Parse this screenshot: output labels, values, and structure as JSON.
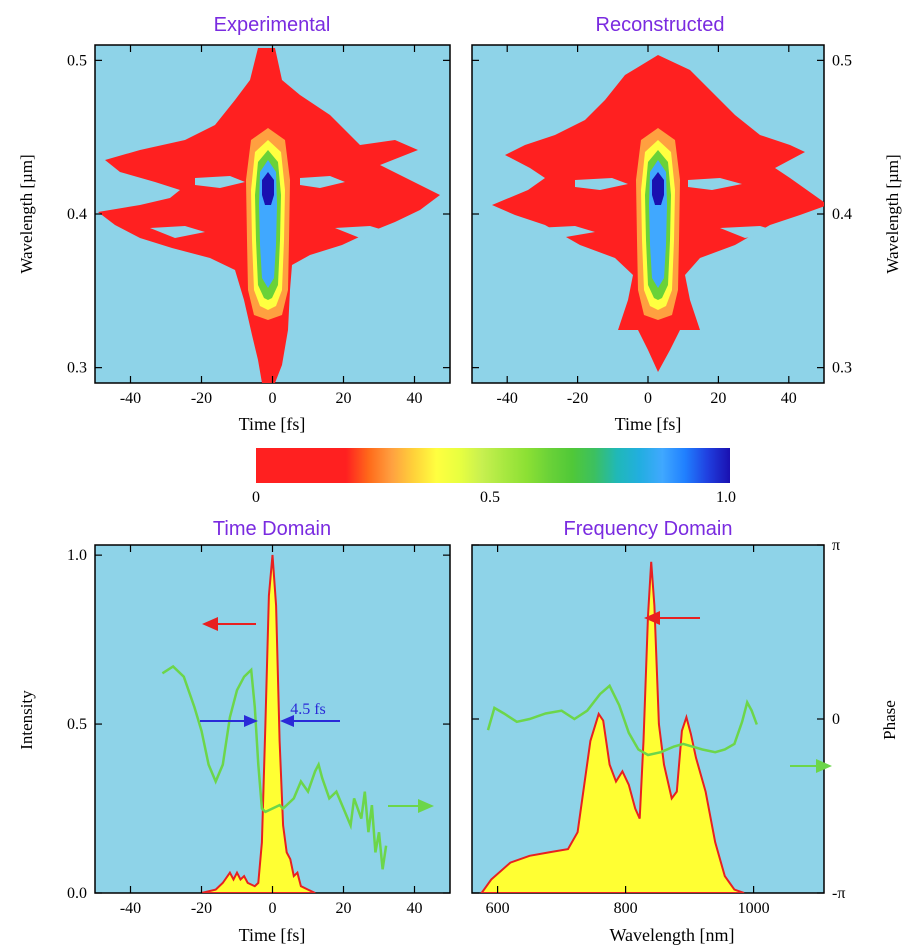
{
  "colors": {
    "background": "#ffffff",
    "plot_bg": "#8ed3e8",
    "title": "#7a2be0",
    "intensity_fill": "#ffff33",
    "intensity_line": "#e82020",
    "phase_line": "#6cd64a",
    "arrow_red": "#e82020",
    "arrow_blue": "#2a2ad8",
    "arrow_green": "#6cd64a"
  },
  "colormap": [
    "#ff2020",
    "#ff2020",
    "#ff2020",
    "#ff2020",
    "#ff2020",
    "#ff6a1a",
    "#ffa040",
    "#ffd23a",
    "#ffff40",
    "#e8ff40",
    "#c8f050",
    "#a8e840",
    "#8ce034",
    "#6ad238",
    "#50c838",
    "#3cc060",
    "#20b8b8",
    "#22aee0",
    "#40a8ff",
    "#2080ff",
    "#2040e0",
    "#1a10b0"
  ],
  "colorbar": {
    "min_label": "0",
    "mid_label": "0.5",
    "max_label": "1.0"
  },
  "chart_data": [
    {
      "type": "heatmap",
      "title": "Experimental",
      "xlabel": "Time [fs]",
      "ylabel": "Wavelength [µm]",
      "xlim": [
        -50,
        50
      ],
      "ylim": [
        0.29,
        0.51
      ],
      "xticks": [
        "-40",
        "-20",
        "0",
        "20",
        "40"
      ],
      "xtick_values": [
        -40,
        -20,
        0,
        20,
        40
      ],
      "yticks": [
        "0.3",
        "0.4",
        "0.5"
      ],
      "ytick_values": [
        0.3,
        0.4,
        0.5
      ],
      "colorscale": [
        0,
        1
      ]
    },
    {
      "type": "heatmap",
      "title": "Reconstructed",
      "xlabel": "Time [fs]",
      "ylabel": "Wavelength [µm]",
      "xlim": [
        -50,
        50
      ],
      "ylim": [
        0.29,
        0.51
      ],
      "xticks": [
        "-40",
        "-20",
        "0",
        "20",
        "40"
      ],
      "xtick_values": [
        -40,
        -20,
        0,
        20,
        40
      ],
      "yticks": [
        "0.3",
        "0.4",
        "0.5"
      ],
      "ytick_values": [
        0.3,
        0.4,
        0.5
      ],
      "colorscale": [
        0,
        1
      ]
    },
    {
      "type": "line",
      "title": "Time Domain",
      "xlabel": "Time [fs]",
      "ylabel": "Intensity",
      "xlim": [
        -50,
        50
      ],
      "ylim": [
        0,
        1.03
      ],
      "xticks": [
        "-40",
        "-20",
        "0",
        "20",
        "40"
      ],
      "xtick_values": [
        -40,
        -20,
        0,
        20,
        40
      ],
      "yticks": [
        "0.0",
        "0.5",
        "1.0"
      ],
      "ytick_values": [
        0,
        0.5,
        1.0
      ],
      "annotation": "4.5 fs",
      "series": [
        {
          "kind": "intensity",
          "points": [
            [
              -20,
              0.0
            ],
            [
              -16,
              0.01
            ],
            [
              -14,
              0.03
            ],
            [
              -12,
              0.06
            ],
            [
              -11,
              0.04
            ],
            [
              -10,
              0.06
            ],
            [
              -9,
              0.04
            ],
            [
              -8,
              0.05
            ],
            [
              -7,
              0.03
            ],
            [
              -5,
              0.02
            ],
            [
              -4,
              0.03
            ],
            [
              -3,
              0.15
            ],
            [
              -2,
              0.5
            ],
            [
              -1,
              0.88
            ],
            [
              0,
              1.0
            ],
            [
              1,
              0.85
            ],
            [
              2,
              0.45
            ],
            [
              3,
              0.2
            ],
            [
              4,
              0.12
            ],
            [
              5,
              0.1
            ],
            [
              6,
              0.05
            ],
            [
              7,
              0.06
            ],
            [
              8,
              0.02
            ],
            [
              10,
              0.01
            ],
            [
              12,
              0.0
            ]
          ]
        },
        {
          "kind": "phase",
          "points": [
            [
              -31,
              0.65
            ],
            [
              -28,
              0.67
            ],
            [
              -25,
              0.64
            ],
            [
              -22,
              0.55
            ],
            [
              -20,
              0.48
            ],
            [
              -18,
              0.38
            ],
            [
              -16,
              0.33
            ],
            [
              -14,
              0.38
            ],
            [
              -12,
              0.52
            ],
            [
              -10,
              0.6
            ],
            [
              -8,
              0.64
            ],
            [
              -6,
              0.66
            ],
            [
              -5,
              0.55
            ],
            [
              -4,
              0.38
            ],
            [
              -3,
              0.25
            ],
            [
              -2,
              0.24
            ],
            [
              0,
              0.25
            ],
            [
              2,
              0.26
            ],
            [
              3,
              0.25
            ],
            [
              4,
              0.26
            ],
            [
              6,
              0.28
            ],
            [
              8,
              0.33
            ],
            [
              10,
              0.3
            ],
            [
              12,
              0.36
            ],
            [
              13,
              0.38
            ],
            [
              14,
              0.34
            ],
            [
              16,
              0.28
            ],
            [
              18,
              0.3
            ],
            [
              20,
              0.25
            ],
            [
              22,
              0.2
            ],
            [
              23,
              0.28
            ],
            [
              25,
              0.22
            ],
            [
              26,
              0.3
            ],
            [
              27,
              0.18
            ],
            [
              28,
              0.26
            ],
            [
              29,
              0.12
            ],
            [
              30,
              0.18
            ],
            [
              31,
              0.07
            ],
            [
              32,
              0.14
            ]
          ]
        }
      ]
    },
    {
      "type": "line",
      "title": "Frequency Domain",
      "xlabel": "Wavelength [nm]",
      "ylabel": "Phase",
      "xlim": [
        560,
        1110
      ],
      "ylim": [
        -3.14159,
        3.14159
      ],
      "xticks": [
        "600",
        "800",
        "1000"
      ],
      "xtick_values": [
        600,
        800,
        1000
      ],
      "yticks": [
        "π",
        "0",
        "-π"
      ],
      "ytick_values": [
        3.14159,
        0,
        -3.14159
      ],
      "series": [
        {
          "kind": "intensity",
          "points": [
            [
              575,
              0.0
            ],
            [
              590,
              0.04
            ],
            [
              620,
              0.09
            ],
            [
              650,
              0.11
            ],
            [
              680,
              0.12
            ],
            [
              710,
              0.13
            ],
            [
              725,
              0.18
            ],
            [
              745,
              0.45
            ],
            [
              758,
              0.53
            ],
            [
              765,
              0.51
            ],
            [
              775,
              0.38
            ],
            [
              785,
              0.33
            ],
            [
              795,
              0.36
            ],
            [
              805,
              0.32
            ],
            [
              815,
              0.25
            ],
            [
              822,
              0.22
            ],
            [
              828,
              0.45
            ],
            [
              835,
              0.82
            ],
            [
              840,
              0.98
            ],
            [
              845,
              0.85
            ],
            [
              852,
              0.5
            ],
            [
              860,
              0.38
            ],
            [
              872,
              0.28
            ],
            [
              880,
              0.3
            ],
            [
              888,
              0.48
            ],
            [
              895,
              0.52
            ],
            [
              902,
              0.47
            ],
            [
              910,
              0.4
            ],
            [
              925,
              0.3
            ],
            [
              940,
              0.15
            ],
            [
              955,
              0.05
            ],
            [
              970,
              0.01
            ],
            [
              985,
              0.0
            ]
          ]
        },
        {
          "kind": "phase",
          "points": [
            [
              585,
              -0.2
            ],
            [
              595,
              0.2
            ],
            [
              610,
              0.1
            ],
            [
              630,
              -0.05
            ],
            [
              650,
              0.0
            ],
            [
              675,
              0.1
            ],
            [
              700,
              0.15
            ],
            [
              720,
              0.0
            ],
            [
              740,
              0.15
            ],
            [
              760,
              0.45
            ],
            [
              775,
              0.6
            ],
            [
              790,
              0.25
            ],
            [
              805,
              -0.25
            ],
            [
              820,
              -0.55
            ],
            [
              835,
              -0.65
            ],
            [
              855,
              -0.6
            ],
            [
              875,
              -0.5
            ],
            [
              890,
              -0.45
            ],
            [
              905,
              -0.5
            ],
            [
              920,
              -0.55
            ],
            [
              940,
              -0.6
            ],
            [
              955,
              -0.55
            ],
            [
              970,
              -0.45
            ],
            [
              982,
              -0.05
            ],
            [
              990,
              0.3
            ],
            [
              997,
              0.15
            ],
            [
              1005,
              -0.1
            ]
          ]
        }
      ]
    }
  ]
}
